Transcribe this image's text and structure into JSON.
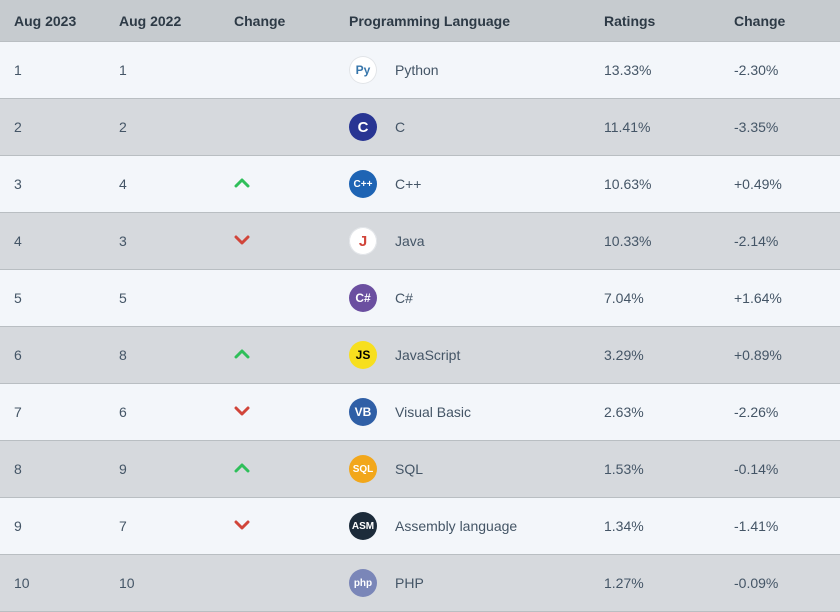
{
  "columns": {
    "rank2023": "Aug 2023",
    "rank2022": "Aug 2022",
    "changeDir": "Change",
    "language": "Programming Language",
    "ratings": "Ratings",
    "ratingsChange": "Change"
  },
  "arrow_colors": {
    "up": "#2fbf5a",
    "down": "#d1453a"
  },
  "row_colors": {
    "odd": "#f3f6fa",
    "even": "#d6d9dd",
    "header": "#c6cbcf"
  },
  "rows": [
    {
      "rank2023": "1",
      "rank2022": "1",
      "dir": "",
      "lang": "Python",
      "ratings": "13.33%",
      "delta": "-2.30%",
      "icon": {
        "bg": "#ffffff",
        "fg": "#3776ab",
        "text": "Py",
        "white_bg": true
      }
    },
    {
      "rank2023": "2",
      "rank2022": "2",
      "dir": "",
      "lang": "C",
      "ratings": "11.41%",
      "delta": "-3.35%",
      "icon": {
        "bg": "#283593",
        "fg": "#ffffff",
        "text": "C"
      }
    },
    {
      "rank2023": "3",
      "rank2022": "4",
      "dir": "up",
      "lang": "C++",
      "ratings": "10.63%",
      "delta": "+0.49%",
      "icon": {
        "bg": "#1e64b4",
        "fg": "#ffffff",
        "text": "C++"
      }
    },
    {
      "rank2023": "4",
      "rank2022": "3",
      "dir": "down",
      "lang": "Java",
      "ratings": "10.33%",
      "delta": "-2.14%",
      "icon": {
        "bg": "#ffffff",
        "fg": "#d1453a",
        "text": "J",
        "white_bg": true
      }
    },
    {
      "rank2023": "5",
      "rank2022": "5",
      "dir": "",
      "lang": "C#",
      "ratings": "7.04%",
      "delta": "+1.64%",
      "icon": {
        "bg": "#6b4fa0",
        "fg": "#ffffff",
        "text": "C#"
      }
    },
    {
      "rank2023": "6",
      "rank2022": "8",
      "dir": "up",
      "lang": "JavaScript",
      "ratings": "3.29%",
      "delta": "+0.89%",
      "icon": {
        "bg": "#f7df1e",
        "fg": "#000000",
        "text": "JS"
      }
    },
    {
      "rank2023": "7",
      "rank2022": "6",
      "dir": "down",
      "lang": "Visual Basic",
      "ratings": "2.63%",
      "delta": "-2.26%",
      "icon": {
        "bg": "#2f5fa6",
        "fg": "#ffffff",
        "text": "VB"
      }
    },
    {
      "rank2023": "8",
      "rank2022": "9",
      "dir": "up",
      "lang": "SQL",
      "ratings": "1.53%",
      "delta": "-0.14%",
      "icon": {
        "bg": "#f2a71b",
        "fg": "#ffffff",
        "text": "SQL"
      }
    },
    {
      "rank2023": "9",
      "rank2022": "7",
      "dir": "down",
      "lang": "Assembly language",
      "ratings": "1.34%",
      "delta": "-1.41%",
      "icon": {
        "bg": "#1c2b3a",
        "fg": "#ffffff",
        "text": "ASM"
      }
    },
    {
      "rank2023": "10",
      "rank2022": "10",
      "dir": "",
      "lang": "PHP",
      "ratings": "1.27%",
      "delta": "-0.09%",
      "icon": {
        "bg": "#7a86b8",
        "fg": "#ffffff",
        "text": "php"
      }
    }
  ]
}
